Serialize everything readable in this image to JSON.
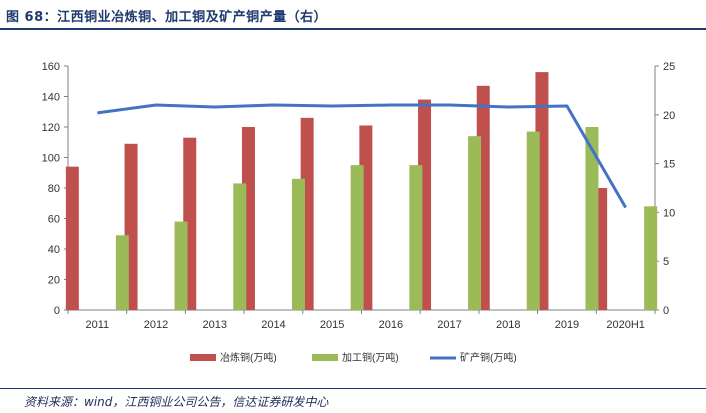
{
  "figure": {
    "title": "图 68：江西铜业冶炼铜、加工铜及矿产铜产量（右）",
    "source": "资料来源：wind，江西铜业公司公告，信达证券研发中心"
  },
  "chart_data": {
    "type": "bar",
    "categories": [
      "2011",
      "2012",
      "2013",
      "2014",
      "2015",
      "2016",
      "2017",
      "2018",
      "2019",
      "2020H1"
    ],
    "series": [
      {
        "name": "冶炼铜(万吨)",
        "type": "bar",
        "axis": "left",
        "color": "#c0504d",
        "values": [
          94,
          109,
          113,
          120,
          126,
          121,
          138,
          147,
          156,
          80
        ]
      },
      {
        "name": "加工铜(万吨)",
        "type": "bar",
        "axis": "left",
        "color": "#9bbb59",
        "values": [
          49,
          58,
          83,
          86,
          95,
          95,
          114,
          117,
          120,
          68
        ]
      },
      {
        "name": "矿产铜(万吨)",
        "type": "line",
        "axis": "right",
        "color": "#4472c4",
        "values": [
          20.2,
          21.0,
          20.8,
          21.0,
          20.9,
          21.0,
          21.0,
          20.8,
          20.9,
          10.5
        ]
      }
    ],
    "y_left": {
      "min": 0,
      "max": 160,
      "ticks": [
        0,
        20,
        40,
        60,
        80,
        100,
        120,
        140,
        160
      ]
    },
    "y_right": {
      "min": 0,
      "max": 25,
      "ticks": [
        0,
        5,
        10,
        15,
        20,
        25
      ]
    },
    "grid": false,
    "legend_position": "bottom"
  }
}
